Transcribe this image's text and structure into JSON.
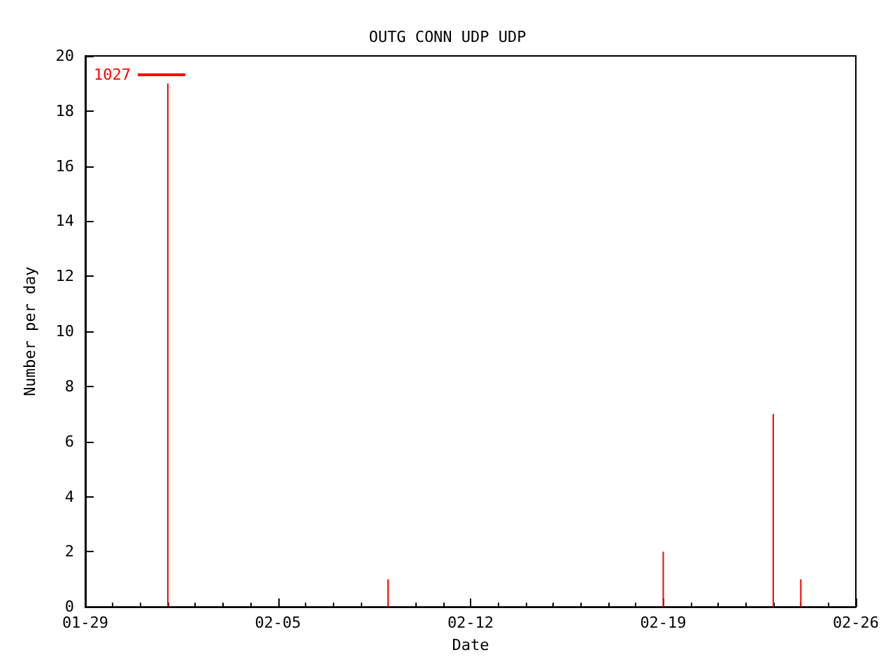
{
  "chart_data": {
    "type": "bar",
    "title": "OUTG CONN UDP UDP",
    "xlabel": "Date",
    "ylabel": "Number per day",
    "x": [
      "--02-01",
      "--02-09",
      "--02-19",
      "--02-23",
      "--02-24"
    ],
    "series": [
      {
        "name": "1027",
        "color": "#ff0000",
        "values": [
          19,
          1,
          2,
          7,
          1
        ]
      }
    ],
    "xlim": [
      "--01-29",
      "--02-26"
    ],
    "xticks": [
      {
        "value": "--01-29",
        "label": "01-29"
      },
      {
        "value": "--02-05",
        "label": "02-05"
      },
      {
        "value": "--02-12",
        "label": "02-12"
      },
      {
        "value": "--02-19",
        "label": "02-19"
      },
      {
        "value": "--02-26",
        "label": "02-26"
      }
    ],
    "ylim": [
      0,
      20
    ],
    "yticks": [
      0,
      2,
      4,
      6,
      8,
      10,
      12,
      14,
      16,
      18,
      20
    ],
    "grid": false,
    "legend": "top left"
  }
}
